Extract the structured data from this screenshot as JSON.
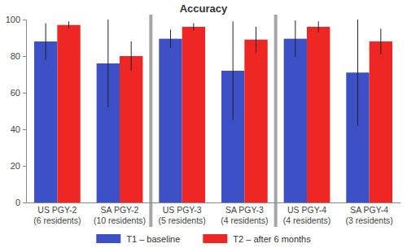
{
  "chart_data": {
    "type": "bar",
    "title": "Accuracy",
    "categories": [
      "US PGY-2\n(6 residents)",
      "SA PGY-2\n(10 residents)",
      "US PGY-3\n(5 residents)",
      "SA PGY-3\n(4 residents)",
      "US PGY-4\n(4 residents)",
      "SA PGY-4\n(3 residents)"
    ],
    "series": [
      {
        "name": "T1 – baseline",
        "color": "#3d50c6",
        "values": [
          88,
          76,
          89.5,
          72,
          89.5,
          71
        ],
        "errors": [
          10,
          24,
          5,
          27,
          10,
          29
        ]
      },
      {
        "name": "T2 – after 6 months",
        "color": "#ee2624",
        "values": [
          97,
          80,
          96,
          89,
          96,
          88
        ],
        "errors": [
          2,
          8,
          2,
          7,
          3,
          7
        ]
      }
    ],
    "ylim": [
      0,
      100
    ],
    "yticks": [
      0,
      20,
      40,
      60,
      80,
      100
    ],
    "grid": false,
    "legend": "bottom"
  }
}
